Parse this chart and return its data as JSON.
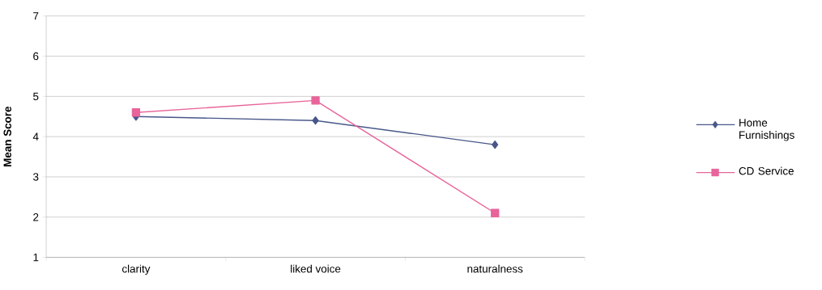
{
  "chart_data": {
    "type": "line",
    "ylabel": "Mean Score",
    "categories": [
      "clarity",
      "liked voice",
      "naturalness"
    ],
    "series": [
      {
        "name": "Home Furnishings",
        "color": "#48578a",
        "marker": "diamond",
        "values": [
          4.5,
          4.4,
          3.8
        ]
      },
      {
        "name": "CD Service",
        "color": "#e8649a",
        "marker": "square",
        "values": [
          4.6,
          4.9,
          2.1
        ]
      }
    ],
    "ylim": [
      1,
      7
    ],
    "yticks": [
      1,
      2,
      3,
      4,
      5,
      6,
      7
    ],
    "grid": "y",
    "legend": "right",
    "line_style": "solid"
  }
}
